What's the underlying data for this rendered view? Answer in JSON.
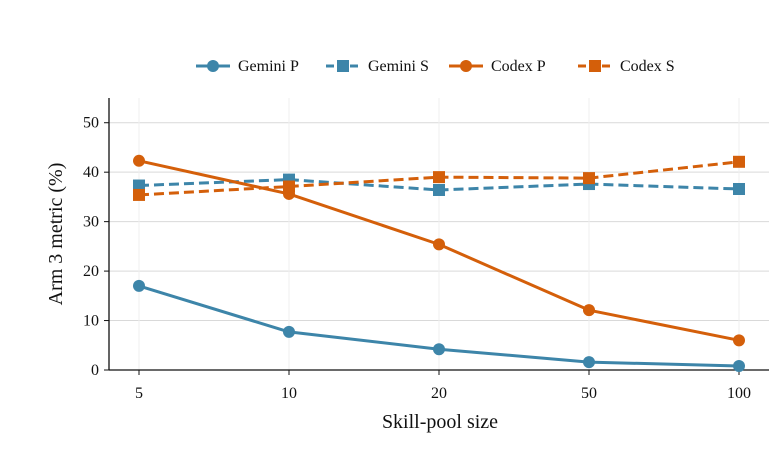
{
  "chart_data": {
    "type": "line",
    "title": "",
    "xlabel": "Skill-pool size",
    "ylabel": "Arm 3 metric (%)",
    "categories": [
      "5",
      "10",
      "20",
      "50",
      "100"
    ],
    "ylim": [
      0,
      55
    ],
    "yticks": [
      "0",
      "10",
      "20",
      "30",
      "40",
      "50"
    ],
    "grid": true,
    "legend_position": "top-center",
    "series": [
      {
        "name": "Gemini P",
        "values": [
          17.0,
          7.7,
          4.2,
          1.6,
          0.8
        ],
        "color": "#3d85a9",
        "dash": "solid",
        "marker": "circle"
      },
      {
        "name": "Gemini S",
        "values": [
          37.3,
          38.5,
          36.4,
          37.6,
          36.6
        ],
        "color": "#3d85a9",
        "dash": "dashed",
        "marker": "square"
      },
      {
        "name": "Codex P",
        "values": [
          42.3,
          35.6,
          25.4,
          12.1,
          6.0
        ],
        "color": "#d45f0a",
        "dash": "solid",
        "marker": "circle"
      },
      {
        "name": "Codex S",
        "values": [
          35.4,
          37.1,
          39.0,
          38.8,
          42.1
        ],
        "color": "#d45f0a",
        "dash": "dashed",
        "marker": "square"
      }
    ]
  }
}
